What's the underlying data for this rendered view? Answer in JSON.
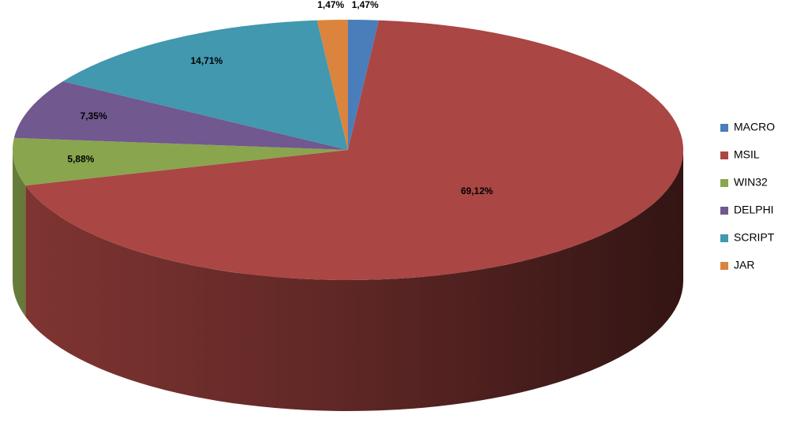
{
  "chart_data": {
    "type": "pie",
    "categories": [
      "MACRO",
      "MSIL",
      "WIN32",
      "DELPHI",
      "SCRIPT",
      "JAR"
    ],
    "values": [
      1.47,
      69.12,
      5.88,
      7.35,
      14.71,
      1.47
    ],
    "value_labels": [
      "1,47%",
      "69,12%",
      "5,88%",
      "7,35%",
      "14,71%",
      "1,47%"
    ],
    "colors": [
      "#4a7ebb",
      "#aa4643",
      "#89a54e",
      "#71588f",
      "#4198af",
      "#db843d"
    ],
    "legend": "right"
  }
}
